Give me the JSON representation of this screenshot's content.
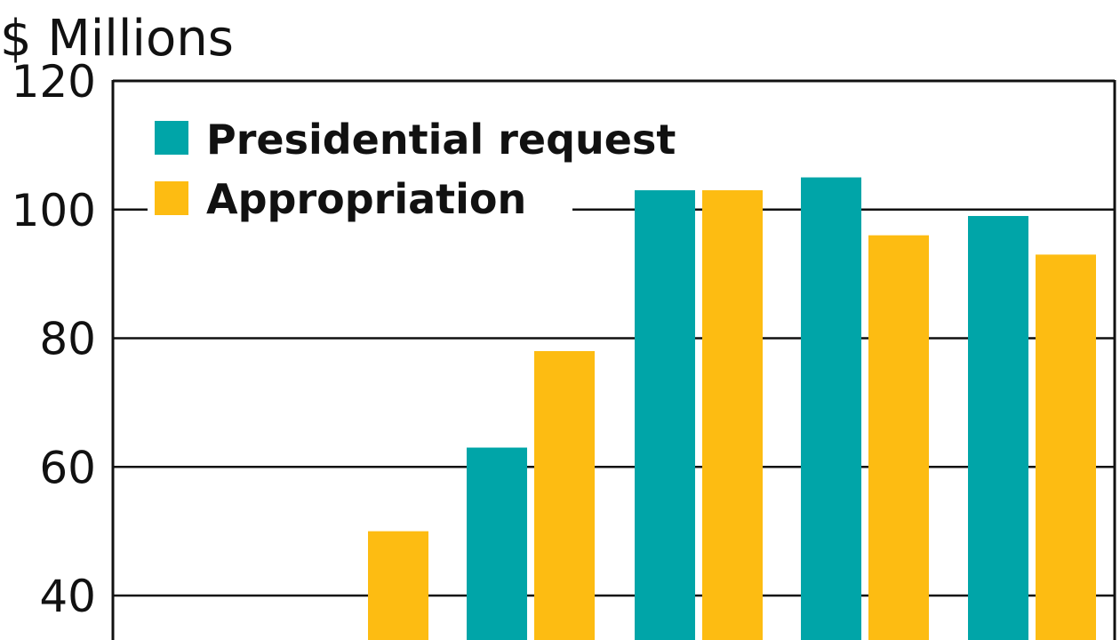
{
  "chart_data": {
    "type": "bar",
    "ylabel": "$ Millions",
    "ylim": [
      40,
      120
    ],
    "y_ticks": [
      "40",
      "60",
      "80",
      "100",
      "120"
    ],
    "grid": true,
    "legend_position": "top-left",
    "colors": {
      "presidential": "#00a5a8",
      "appropriation": "#fdbc12",
      "axis": "#111111"
    },
    "categories": [
      "",
      "",
      "",
      "",
      "",
      ""
    ],
    "series": [
      {
        "name": "Presidential request",
        "values": [
          null,
          null,
          63,
          103,
          105,
          99
        ]
      },
      {
        "name": "Appropriation",
        "values": [
          null,
          50,
          78,
          103,
          96,
          93
        ]
      }
    ]
  }
}
